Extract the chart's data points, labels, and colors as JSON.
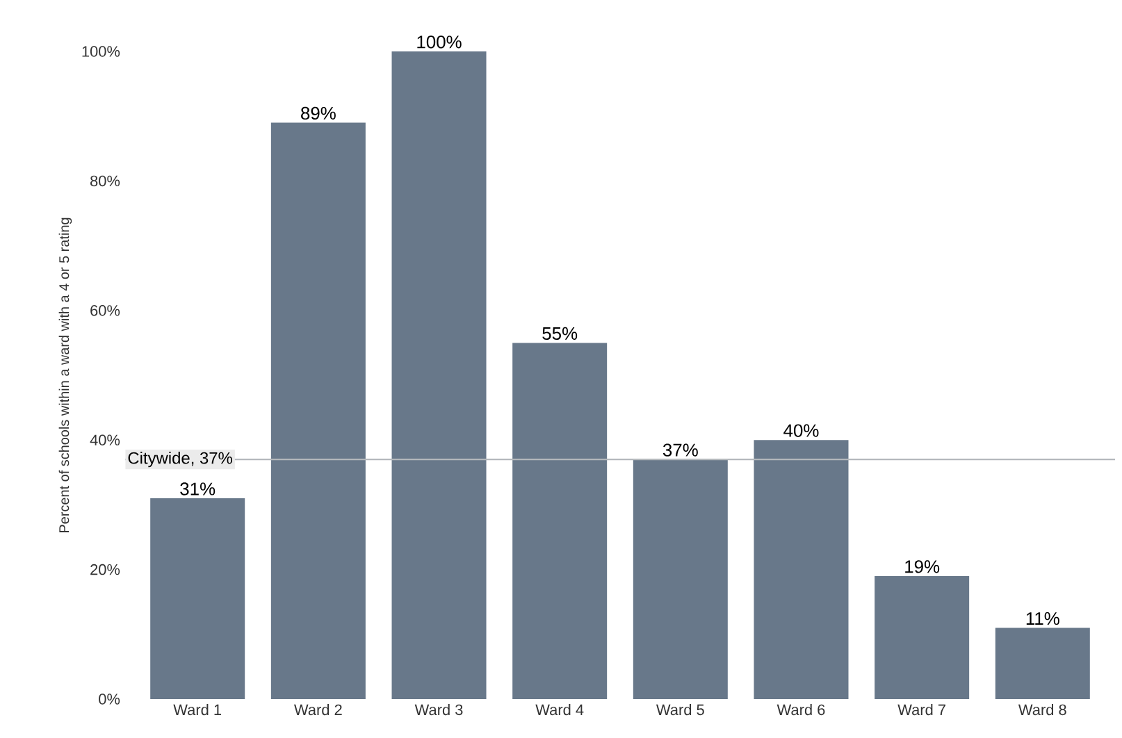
{
  "chart_data": {
    "type": "bar",
    "ylabel": "Percent of schools within a ward with a 4 or 5 rating",
    "categories": [
      "Ward 1",
      "Ward 2",
      "Ward 3",
      "Ward 4",
      "Ward 5",
      "Ward 6",
      "Ward 7",
      "Ward 8"
    ],
    "values": [
      31,
      89,
      100,
      55,
      37,
      40,
      19,
      11
    ],
    "value_labels": [
      "31%",
      "89%",
      "100%",
      "55%",
      "37%",
      "40%",
      "19%",
      "11%"
    ],
    "color": "#68788a",
    "ylim": [
      0,
      100
    ],
    "yticks": [
      {
        "value": 0,
        "label": "0%"
      },
      {
        "value": 20,
        "label": "20%"
      },
      {
        "value": 40,
        "label": "40%"
      },
      {
        "value": 60,
        "label": "60%"
      },
      {
        "value": 80,
        "label": "80%"
      },
      {
        "value": 100,
        "label": "100%"
      }
    ],
    "ref_lines": [
      {
        "axis": "y",
        "value": 37,
        "label": "Citywide, 37%",
        "color": "#b4b8bc"
      }
    ],
    "grid": false
  }
}
